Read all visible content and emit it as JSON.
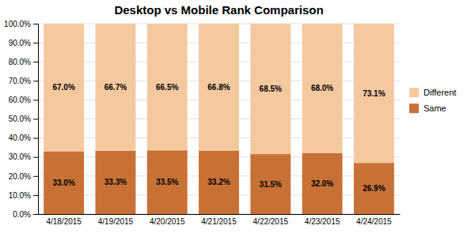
{
  "chart_data": {
    "type": "bar",
    "stacked": true,
    "title": "Desktop vs Mobile Rank Comparison",
    "categories": [
      "4/18/2015",
      "4/19/2015",
      "4/20/2015",
      "4/21/2015",
      "4/22/2015",
      "4/23/2015",
      "4/24/2015"
    ],
    "series": [
      {
        "name": "Same",
        "color": "#c87137",
        "values": [
          33.0,
          33.3,
          33.5,
          33.2,
          31.5,
          32.0,
          26.9
        ],
        "value_labels": [
          "33.0%",
          "33.3%",
          "33.5%",
          "33.2%",
          "31.5%",
          "32.0%",
          "26.9%"
        ]
      },
      {
        "name": "Different",
        "color": "#f5c9a0",
        "values": [
          67.0,
          66.7,
          66.5,
          66.8,
          68.5,
          68.0,
          73.1
        ],
        "value_labels": [
          "67.0%",
          "66.7%",
          "66.5%",
          "66.8%",
          "68.5%",
          "68.0%",
          "73.1%"
        ]
      }
    ],
    "ylim": [
      0,
      100
    ],
    "yticks": [
      {
        "value": 0,
        "label": "0.0%"
      },
      {
        "value": 10,
        "label": "10.0%"
      },
      {
        "value": 20,
        "label": "20.0%"
      },
      {
        "value": 30,
        "label": "30.0%"
      },
      {
        "value": 40,
        "label": "40.0%"
      },
      {
        "value": 50,
        "label": "50.0%"
      },
      {
        "value": 60,
        "label": "60.0%"
      },
      {
        "value": 70,
        "label": "70.0%"
      },
      {
        "value": 80,
        "label": "80.0%"
      },
      {
        "value": 90,
        "label": "90.0%"
      },
      {
        "value": 100,
        "label": "100.0%"
      }
    ],
    "grid": true,
    "legend": "right",
    "data_labels": true
  }
}
